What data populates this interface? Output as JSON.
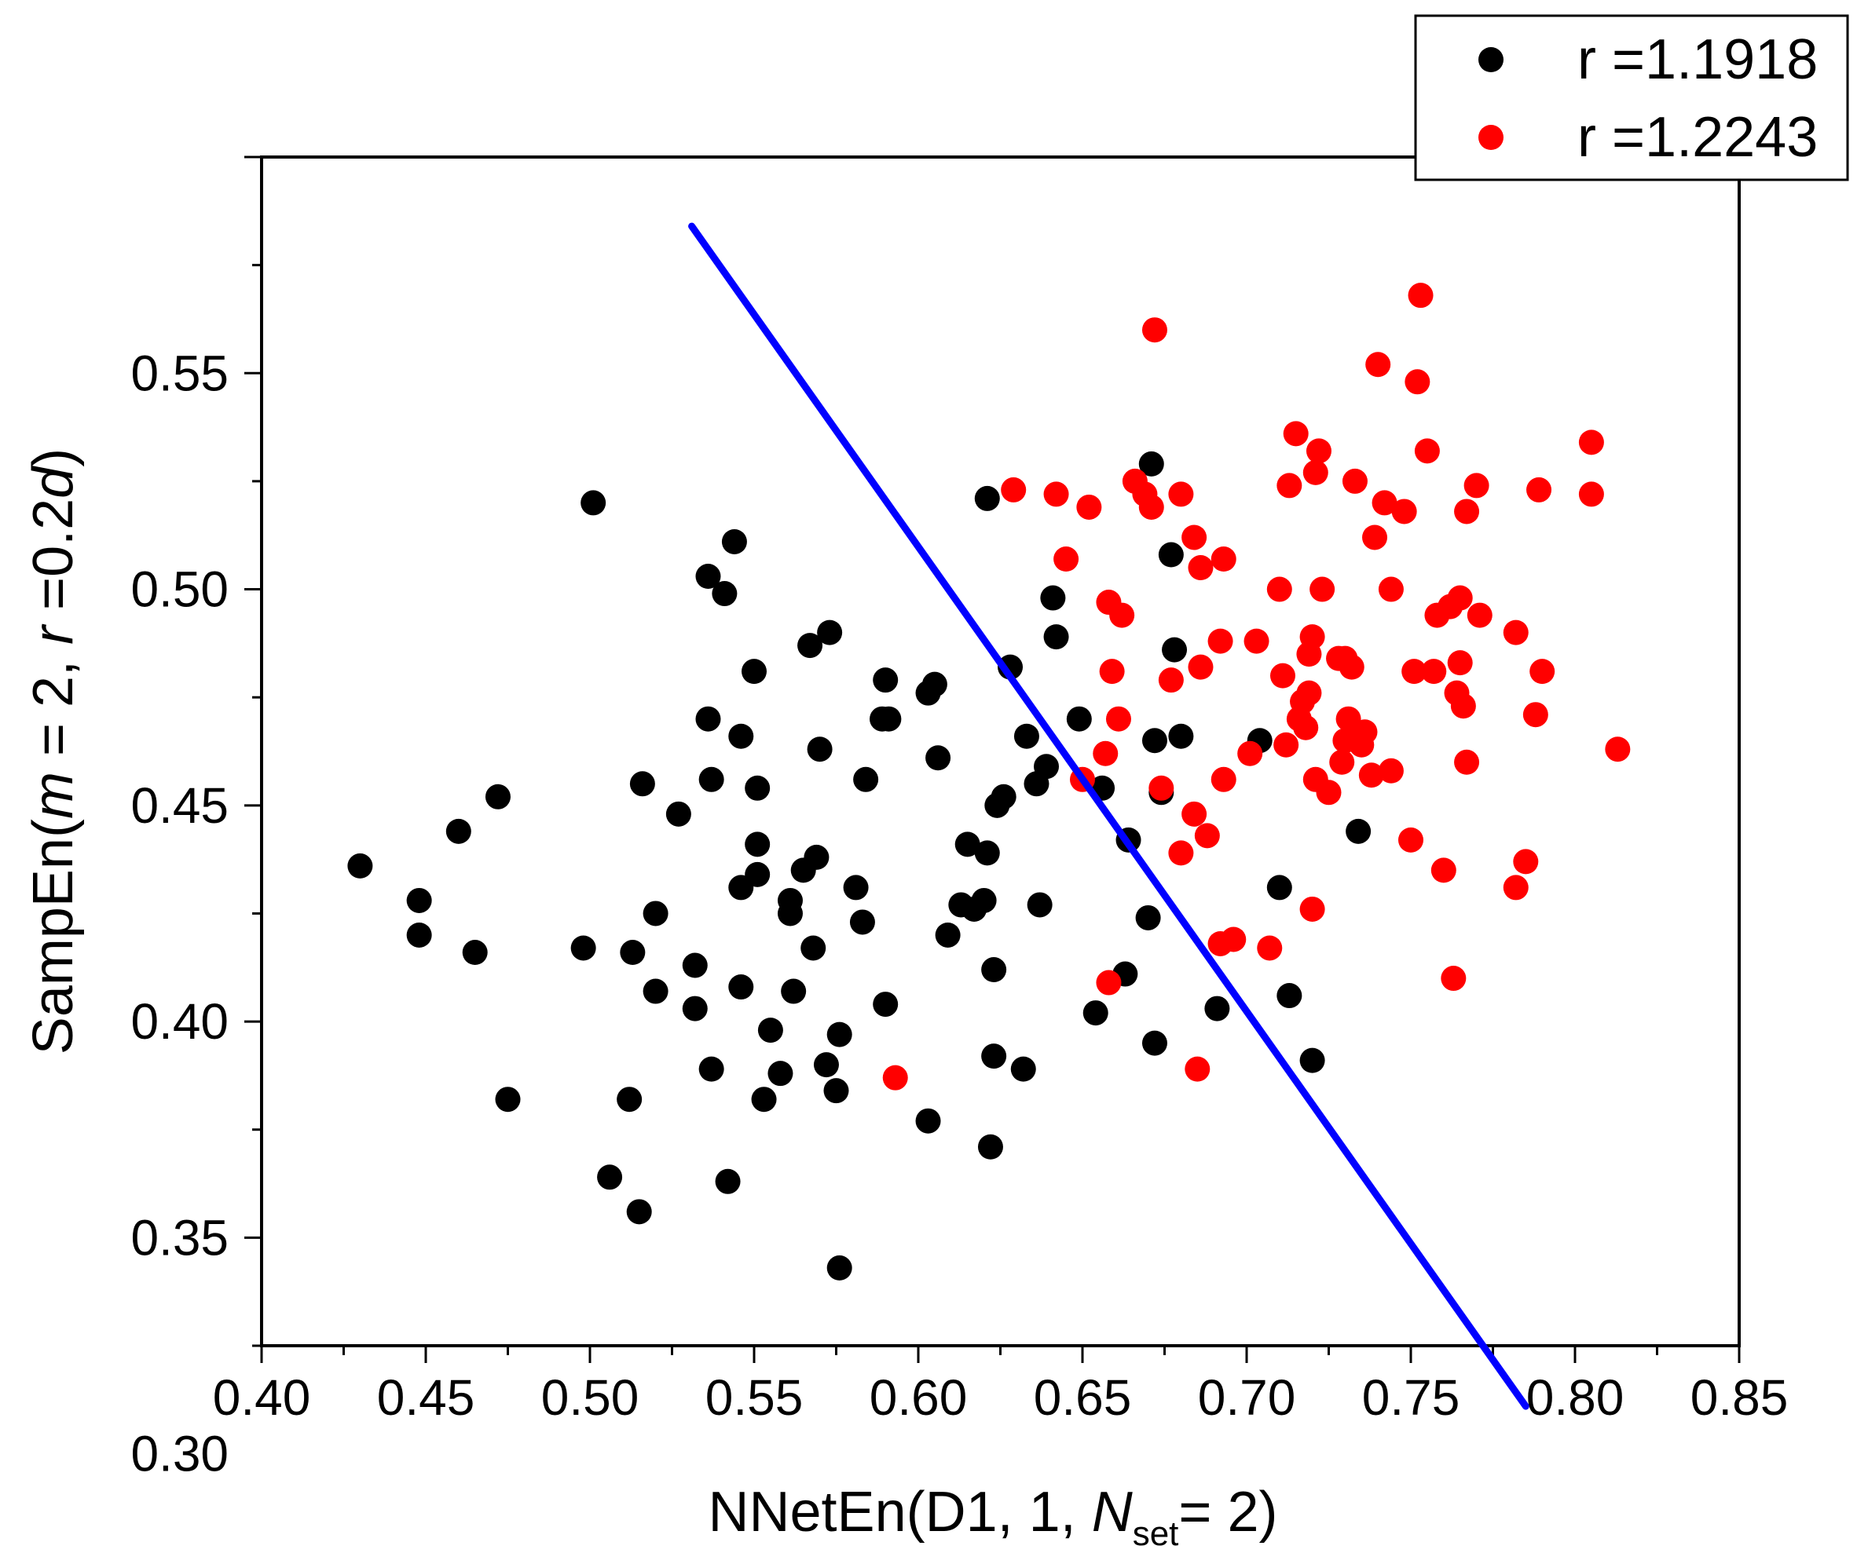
{
  "chart_data": {
    "type": "scatter",
    "xlabel": {
      "main": "NNetEn(D1, 1, ",
      "italic": "N",
      "sub": "set",
      "end": "= 2)"
    },
    "ylabel": {
      "p1": "SampEn(",
      "m": "m",
      "p2": " = 2, ",
      "r": "r",
      "p3": " =0.2",
      "d": "d",
      "p4": ")"
    },
    "xlim": [
      0.4,
      0.85
    ],
    "ylim": [
      0.325,
      0.6
    ],
    "xticks": [
      "0.40",
      "0.45",
      "0.50",
      "0.55",
      "0.60",
      "0.65",
      "0.70",
      "0.75",
      "0.80",
      "0.85"
    ],
    "yticks": [
      "0.30",
      "0.35",
      "0.40",
      "0.45",
      "0.50",
      "0.55"
    ],
    "legend_position": "top-right, outside plot",
    "series": [
      {
        "name": "r =1.1918",
        "color": "#000000",
        "points": [
          [
            0.43,
            0.436
          ],
          [
            0.448,
            0.428
          ],
          [
            0.448,
            0.42
          ],
          [
            0.46,
            0.444
          ],
          [
            0.465,
            0.416
          ],
          [
            0.472,
            0.452
          ],
          [
            0.475,
            0.382
          ],
          [
            0.498,
            0.417
          ],
          [
            0.501,
            0.52
          ],
          [
            0.506,
            0.364
          ],
          [
            0.512,
            0.382
          ],
          [
            0.513,
            0.416
          ],
          [
            0.515,
            0.356
          ],
          [
            0.516,
            0.455
          ],
          [
            0.52,
            0.425
          ],
          [
            0.52,
            0.407
          ],
          [
            0.527,
            0.448
          ],
          [
            0.532,
            0.413
          ],
          [
            0.532,
            0.403
          ],
          [
            0.536,
            0.503
          ],
          [
            0.536,
            0.47
          ],
          [
            0.537,
            0.456
          ],
          [
            0.537,
            0.389
          ],
          [
            0.541,
            0.499
          ],
          [
            0.542,
            0.363
          ],
          [
            0.544,
            0.511
          ],
          [
            0.546,
            0.466
          ],
          [
            0.546,
            0.431
          ],
          [
            0.546,
            0.408
          ],
          [
            0.55,
            0.481
          ],
          [
            0.551,
            0.454
          ],
          [
            0.551,
            0.441
          ],
          [
            0.551,
            0.434
          ],
          [
            0.553,
            0.382
          ],
          [
            0.555,
            0.398
          ],
          [
            0.558,
            0.388
          ],
          [
            0.561,
            0.428
          ],
          [
            0.561,
            0.425
          ],
          [
            0.562,
            0.407
          ],
          [
            0.565,
            0.435
          ],
          [
            0.567,
            0.487
          ],
          [
            0.568,
            0.417
          ],
          [
            0.569,
            0.438
          ],
          [
            0.57,
            0.463
          ],
          [
            0.572,
            0.39
          ],
          [
            0.573,
            0.49
          ],
          [
            0.575,
            0.384
          ],
          [
            0.576,
            0.397
          ],
          [
            0.576,
            0.343
          ],
          [
            0.581,
            0.431
          ],
          [
            0.583,
            0.423
          ],
          [
            0.584,
            0.456
          ],
          [
            0.589,
            0.47
          ],
          [
            0.59,
            0.479
          ],
          [
            0.59,
            0.404
          ],
          [
            0.591,
            0.47
          ],
          [
            0.603,
            0.476
          ],
          [
            0.603,
            0.377
          ],
          [
            0.605,
            0.478
          ],
          [
            0.606,
            0.461
          ],
          [
            0.609,
            0.42
          ],
          [
            0.613,
            0.427
          ],
          [
            0.615,
            0.441
          ],
          [
            0.617,
            0.426
          ],
          [
            0.62,
            0.428
          ],
          [
            0.621,
            0.521
          ],
          [
            0.621,
            0.439
          ],
          [
            0.622,
            0.371
          ],
          [
            0.623,
            0.412
          ],
          [
            0.623,
            0.392
          ],
          [
            0.624,
            0.45
          ],
          [
            0.626,
            0.452
          ],
          [
            0.628,
            0.482
          ],
          [
            0.632,
            0.389
          ],
          [
            0.633,
            0.466
          ],
          [
            0.636,
            0.455
          ],
          [
            0.637,
            0.427
          ],
          [
            0.639,
            0.459
          ],
          [
            0.641,
            0.498
          ],
          [
            0.642,
            0.489
          ],
          [
            0.649,
            0.47
          ],
          [
            0.654,
            0.402
          ],
          [
            0.656,
            0.454
          ],
          [
            0.663,
            0.411
          ],
          [
            0.664,
            0.442
          ],
          [
            0.67,
            0.424
          ],
          [
            0.671,
            0.529
          ],
          [
            0.672,
            0.465
          ],
          [
            0.672,
            0.395
          ],
          [
            0.674,
            0.453
          ],
          [
            0.677,
            0.508
          ],
          [
            0.678,
            0.486
          ],
          [
            0.68,
            0.466
          ],
          [
            0.691,
            0.403
          ],
          [
            0.704,
            0.465
          ],
          [
            0.71,
            0.431
          ],
          [
            0.713,
            0.406
          ],
          [
            0.72,
            0.391
          ],
          [
            0.734,
            0.444
          ]
        ]
      },
      {
        "name": "r =1.2243",
        "color": "#ff0000",
        "points": [
          [
            0.593,
            0.387
          ],
          [
            0.629,
            0.523
          ],
          [
            0.642,
            0.522
          ],
          [
            0.645,
            0.507
          ],
          [
            0.65,
            0.456
          ],
          [
            0.652,
            0.519
          ],
          [
            0.657,
            0.462
          ],
          [
            0.658,
            0.409
          ],
          [
            0.658,
            0.497
          ],
          [
            0.659,
            0.481
          ],
          [
            0.661,
            0.47
          ],
          [
            0.662,
            0.494
          ],
          [
            0.666,
            0.525
          ],
          [
            0.669,
            0.522
          ],
          [
            0.671,
            0.519
          ],
          [
            0.672,
            0.56
          ],
          [
            0.674,
            0.454
          ],
          [
            0.677,
            0.479
          ],
          [
            0.68,
            0.439
          ],
          [
            0.68,
            0.522
          ],
          [
            0.684,
            0.512
          ],
          [
            0.684,
            0.448
          ],
          [
            0.685,
            0.389
          ],
          [
            0.686,
            0.482
          ],
          [
            0.686,
            0.505
          ],
          [
            0.688,
            0.443
          ],
          [
            0.692,
            0.418
          ],
          [
            0.692,
            0.488
          ],
          [
            0.693,
            0.507
          ],
          [
            0.693,
            0.456
          ],
          [
            0.696,
            0.419
          ],
          [
            0.701,
            0.462
          ],
          [
            0.703,
            0.488
          ],
          [
            0.707,
            0.417
          ],
          [
            0.71,
            0.5
          ],
          [
            0.711,
            0.48
          ],
          [
            0.712,
            0.464
          ],
          [
            0.713,
            0.524
          ],
          [
            0.715,
            0.536
          ],
          [
            0.716,
            0.47
          ],
          [
            0.717,
            0.474
          ],
          [
            0.718,
            0.468
          ],
          [
            0.719,
            0.476
          ],
          [
            0.719,
            0.485
          ],
          [
            0.72,
            0.426
          ],
          [
            0.72,
            0.489
          ],
          [
            0.721,
            0.527
          ],
          [
            0.721,
            0.456
          ],
          [
            0.722,
            0.532
          ],
          [
            0.723,
            0.5
          ],
          [
            0.725,
            0.453
          ],
          [
            0.728,
            0.484
          ],
          [
            0.729,
            0.46
          ],
          [
            0.73,
            0.465
          ],
          [
            0.73,
            0.484
          ],
          [
            0.731,
            0.47
          ],
          [
            0.732,
            0.482
          ],
          [
            0.733,
            0.525
          ],
          [
            0.734,
            0.466
          ],
          [
            0.735,
            0.464
          ],
          [
            0.736,
            0.467
          ],
          [
            0.738,
            0.457
          ],
          [
            0.739,
            0.512
          ],
          [
            0.74,
            0.552
          ],
          [
            0.742,
            0.52
          ],
          [
            0.744,
            0.5
          ],
          [
            0.744,
            0.458
          ],
          [
            0.748,
            0.518
          ],
          [
            0.75,
            0.442
          ],
          [
            0.751,
            0.481
          ],
          [
            0.752,
            0.548
          ],
          [
            0.753,
            0.568
          ],
          [
            0.755,
            0.532
          ],
          [
            0.757,
            0.481
          ],
          [
            0.758,
            0.494
          ],
          [
            0.76,
            0.435
          ],
          [
            0.762,
            0.496
          ],
          [
            0.763,
            0.41
          ],
          [
            0.764,
            0.476
          ],
          [
            0.765,
            0.483
          ],
          [
            0.765,
            0.498
          ],
          [
            0.766,
            0.473
          ],
          [
            0.767,
            0.518
          ],
          [
            0.767,
            0.46
          ],
          [
            0.77,
            0.524
          ],
          [
            0.771,
            0.494
          ],
          [
            0.782,
            0.431
          ],
          [
            0.782,
            0.49
          ],
          [
            0.785,
            0.437
          ],
          [
            0.788,
            0.471
          ],
          [
            0.789,
            0.523
          ],
          [
            0.79,
            0.481
          ],
          [
            0.805,
            0.534
          ],
          [
            0.805,
            0.522
          ],
          [
            0.813,
            0.463
          ]
        ]
      }
    ],
    "line": {
      "color": "#0000ff",
      "points": [
        [
          0.531,
          0.584
        ],
        [
          0.785,
          0.311
        ]
      ]
    }
  }
}
